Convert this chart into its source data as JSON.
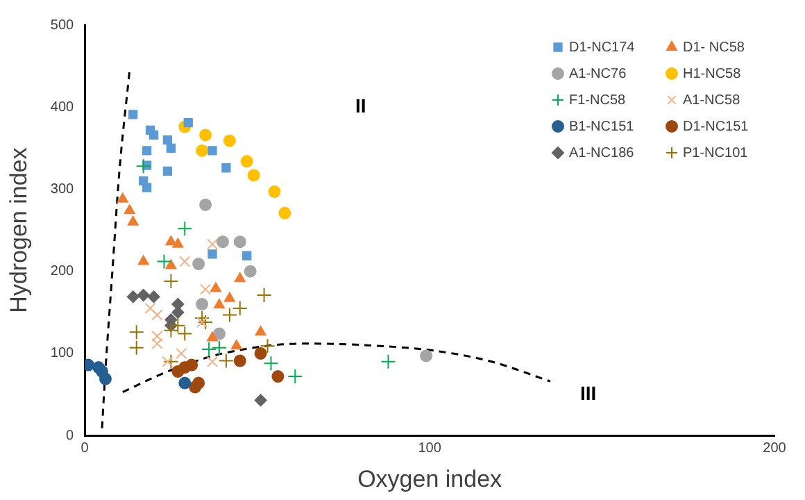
{
  "chart_data": {
    "type": "scatter",
    "xlabel": "Oxygen index",
    "ylabel": "Hydrogen index",
    "xlim": [
      0,
      200
    ],
    "ylim": [
      0,
      500
    ],
    "xticks": [
      0,
      100,
      200
    ],
    "yticks": [
      0,
      100,
      200,
      300,
      400,
      500
    ],
    "grid": false,
    "legend": "top right",
    "annotations": [
      "II",
      "III"
    ],
    "series": [
      {
        "name": "D1-NC174",
        "color": "#5b9bd5",
        "marker": "square",
        "x": [
          14,
          19,
          20,
          24,
          25,
          18,
          30,
          37,
          41,
          24,
          18,
          17,
          18,
          37,
          47
        ],
        "values": [
          391,
          372,
          366,
          360,
          350,
          347,
          381,
          347,
          326,
          322,
          329,
          310,
          302,
          221,
          219
        ]
      },
      {
        "name": "D1- NC58",
        "color": "#ed7d31",
        "marker": "triangle",
        "x": [
          11,
          13,
          14,
          25,
          27,
          17,
          25,
          45,
          38,
          42,
          39,
          37,
          51,
          44
        ],
        "values": [
          288,
          274,
          260,
          236,
          233,
          212,
          207,
          191,
          179,
          167,
          159,
          119,
          126,
          109
        ]
      },
      {
        "name": "A1-NC76",
        "color": "#a5a5a5",
        "marker": "circle",
        "x": [
          35,
          40,
          45,
          33,
          48,
          34,
          39,
          99
        ],
        "values": [
          281,
          236,
          236,
          209,
          200,
          160,
          124,
          97
        ]
      },
      {
        "name": "H1-NC58",
        "color": "#ffc000",
        "marker": "circle",
        "x": [
          29,
          35,
          42,
          34,
          47,
          49,
          55,
          58
        ],
        "values": [
          376,
          366,
          359,
          347,
          334,
          317,
          297,
          271
        ]
      },
      {
        "name": "F1-NC58",
        "color": "#00b050",
        "marker": "cross",
        "x": [
          17,
          29,
          23,
          36,
          39,
          54,
          61,
          88
        ],
        "values": [
          328,
          252,
          212,
          105,
          107,
          88,
          72,
          90
        ]
      },
      {
        "name": "A1-NC58",
        "color": "#f4b183",
        "marker": "x",
        "x": [
          37,
          29,
          19,
          21,
          35,
          34,
          21,
          21,
          24,
          28,
          37
        ],
        "values": [
          233,
          212,
          155,
          147,
          178,
          138,
          121,
          112,
          90,
          100,
          90
        ]
      },
      {
        "name": "B1-NC151",
        "color": "#255e91",
        "marker": "circle",
        "x": [
          1,
          4,
          5,
          6,
          29
        ],
        "values": [
          86,
          83,
          78,
          69,
          64
        ]
      },
      {
        "name": "D1-NC151",
        "color": "#9e480e",
        "marker": "circle",
        "x": [
          27,
          29,
          31,
          33,
          32,
          45,
          51,
          56
        ],
        "values": [
          78,
          83,
          86,
          64,
          59,
          91,
          100,
          72
        ]
      },
      {
        "name": "A1-NC186",
        "color": "#636363",
        "marker": "diamond",
        "x": [
          14,
          17,
          20,
          27,
          27,
          25,
          25,
          51
        ],
        "values": [
          169,
          171,
          169,
          160,
          150,
          141,
          134,
          43
        ]
      },
      {
        "name": "P1-NC101",
        "color": "#997300",
        "marker": "cross",
        "x": [
          25,
          52,
          45,
          42,
          34,
          35,
          27,
          25,
          29,
          15,
          15,
          25,
          41,
          53
        ],
        "values": [
          188,
          171,
          155,
          147,
          143,
          138,
          134,
          128,
          124,
          126,
          107,
          90,
          91,
          109
        ]
      },
      {
        "type": "line",
        "color": "#000000",
        "line_style": "dashed",
        "marker": "none",
        "x": [
          5,
          6,
          8,
          10,
          13
        ],
        "values": [
          9,
          80,
          200,
          320,
          445
        ]
      },
      {
        "type": "line",
        "color": "#000000",
        "line_style": "dashed",
        "marker": "none",
        "x": [
          11,
          24,
          40,
          64,
          82,
          102,
          118,
          135
        ],
        "values": [
          53,
          78,
          100,
          112,
          110,
          103,
          90,
          66
        ]
      }
    ]
  }
}
